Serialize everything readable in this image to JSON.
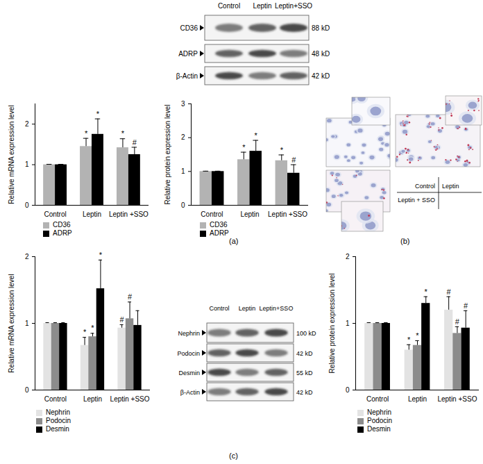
{
  "chart_data": [
    {
      "type": "bar",
      "y_label": "Relative mRNA expression level",
      "categories": [
        "Control",
        "Leptin",
        "Leptin +SSO"
      ],
      "series": [
        {
          "name": "CD36",
          "color": "#b3b3b3",
          "values": [
            1,
            1.45,
            1.42
          ],
          "errors": [
            0.01,
            0.2,
            0.22
          ],
          "annotations": [
            null,
            "*",
            "*"
          ]
        },
        {
          "name": "ADRP",
          "color": "#000000",
          "values": [
            1,
            1.75,
            1.25
          ],
          "errors": [
            0.01,
            0.38,
            0.18
          ],
          "annotations": [
            null,
            "*",
            "#"
          ]
        }
      ],
      "ylim": [
        0,
        2.5
      ],
      "yticks": [
        0,
        1,
        2
      ],
      "legend": "bottom"
    },
    {
      "type": "bar",
      "y_label": "Relative protein expression level",
      "categories": [
        "Control",
        "Leptin",
        "Leptin +SSO"
      ],
      "series": [
        {
          "name": "CD36",
          "color": "#b3b3b3",
          "values": [
            1,
            1.35,
            1.32
          ],
          "errors": [
            0.01,
            0.22,
            0.17
          ],
          "annotations": [
            null,
            "*",
            "*"
          ]
        },
        {
          "name": "ADRP",
          "color": "#000000",
          "values": [
            1,
            1.6,
            0.95
          ],
          "errors": [
            0.01,
            0.32,
            0.25
          ],
          "annotations": [
            null,
            "*",
            "#"
          ]
        }
      ],
      "ylim": [
        0,
        3
      ],
      "yticks": [
        0,
        1,
        2,
        3
      ],
      "legend": "bottom"
    },
    {
      "type": "bar",
      "y_label": "Relative mRNA expression level",
      "categories": [
        "Control",
        "Leptin",
        "Leptin +SSO"
      ],
      "series": [
        {
          "name": "Nephrin",
          "color": "#e3e3e3",
          "values": [
            1,
            0.67,
            0.93
          ],
          "errors": [
            0.01,
            0.12,
            0.05
          ],
          "annotations": [
            null,
            "*",
            "#"
          ]
        },
        {
          "name": "Podocin",
          "color": "#8c8c8c",
          "values": [
            1,
            0.8,
            1.07
          ],
          "errors": [
            0.01,
            0.05,
            0.25
          ],
          "annotations": [
            null,
            "*",
            "#"
          ]
        },
        {
          "name": "Desmin",
          "color": "#000000",
          "values": [
            1,
            1.52,
            0.97
          ],
          "errors": [
            0.01,
            0.43,
            0.22
          ],
          "annotations": [
            null,
            "*",
            null
          ]
        }
      ],
      "ylim": [
        0,
        2
      ],
      "yticks": [
        0,
        1,
        2
      ],
      "legend": "bottom"
    },
    {
      "type": "bar",
      "y_label": "Relative protein expression level",
      "categories": [
        "Control",
        "Leptin",
        "Leptin +SSO"
      ],
      "series": [
        {
          "name": "Nephrin",
          "color": "#e3e3e3",
          "values": [
            1,
            0.6,
            1.2
          ],
          "errors": [
            0.01,
            0.08,
            0.2
          ],
          "annotations": [
            null,
            "*",
            "#"
          ]
        },
        {
          "name": "Podocin",
          "color": "#8c8c8c",
          "values": [
            1,
            0.67,
            0.85
          ],
          "errors": [
            0.01,
            0.07,
            0.1
          ],
          "annotations": [
            null,
            "*",
            "#"
          ]
        },
        {
          "name": "Desmin",
          "color": "#000000",
          "values": [
            1,
            1.3,
            0.93
          ],
          "errors": [
            0.01,
            0.1,
            0.26
          ],
          "annotations": [
            null,
            "*",
            "#"
          ]
        }
      ],
      "ylim": [
        0,
        2
      ],
      "yticks": [
        0,
        1,
        2
      ],
      "legend": "bottom"
    }
  ],
  "blots": [
    {
      "lanes": [
        "Control",
        "Leptin",
        "Leptin+SSO"
      ],
      "rows": [
        {
          "name": "CD36",
          "size": "88 kD"
        },
        {
          "name": "ADRP",
          "size": "48 kD"
        },
        {
          "name": "β-Actin",
          "size": "42 kD"
        }
      ]
    },
    {
      "lanes": [
        "Control",
        "Leptin",
        "Leptin+SSO"
      ],
      "rows": [
        {
          "name": "Nephrin",
          "size": "100 kD"
        },
        {
          "name": "Podocin",
          "size": "42 kD"
        },
        {
          "name": "Desmin",
          "size": "55 kD"
        },
        {
          "name": "β-Actin",
          "size": "42 kD"
        }
      ]
    }
  ],
  "micrographs": {
    "labels": [
      "Control",
      "Leptin",
      "Leptin + SSO"
    ]
  },
  "panel_labels": [
    "(a)",
    "(b)",
    "(c)"
  ]
}
